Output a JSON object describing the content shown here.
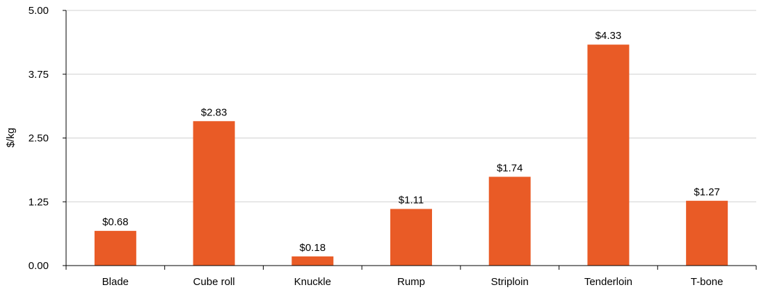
{
  "chart_data": {
    "type": "bar",
    "title": "",
    "xlabel": "",
    "ylabel": "$/kg",
    "categories": [
      "Blade",
      "Cube roll",
      "Knuckle",
      "Rump",
      "Striploin",
      "Tenderloin",
      "T-bone"
    ],
    "values": [
      0.68,
      2.83,
      0.18,
      1.11,
      1.74,
      4.33,
      1.27
    ],
    "data_labels": [
      "$0.68",
      "$2.83",
      "$0.18",
      "$1.11",
      "$1.74",
      "$4.33",
      "$1.27"
    ],
    "yticks": [
      "0.00",
      "1.25",
      "2.50",
      "3.75",
      "5.00"
    ],
    "ylim": [
      0,
      5
    ],
    "grid": true,
    "legend": "none",
    "colors": {
      "bar": "#e95b26"
    }
  }
}
